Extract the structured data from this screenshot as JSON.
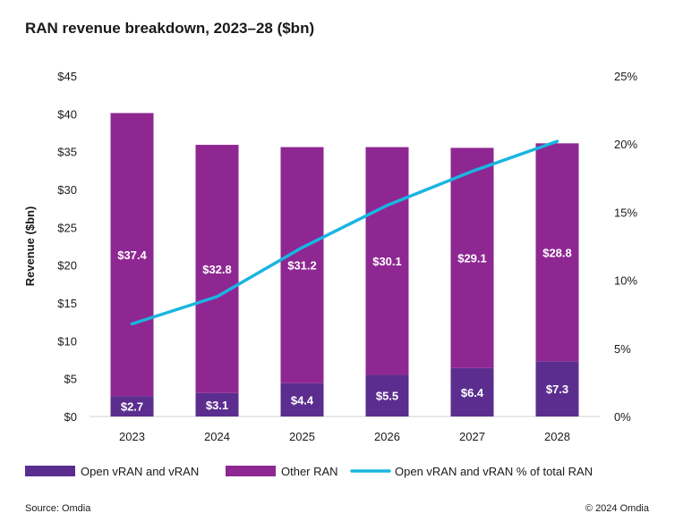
{
  "title": "RAN revenue breakdown, 2023–28 ($bn)",
  "source": "Source: Omdia",
  "copyright": "© 2024 Omdia",
  "colors": {
    "open_vran": "#5b2d8f",
    "other_ran": "#8e2792",
    "share_line": "#19b6e0",
    "baseline": "#d0d0d0"
  },
  "chart_data": {
    "type": "bar",
    "stacked": true,
    "categories": [
      "2023",
      "2024",
      "2025",
      "2026",
      "2027",
      "2028"
    ],
    "series": [
      {
        "name": "Open vRAN and vRAN",
        "values": [
          2.7,
          3.1,
          4.4,
          5.5,
          6.4,
          7.3
        ],
        "labels": [
          "$2.7",
          "$3.1",
          "$4.4",
          "$5.5",
          "$6.4",
          "$7.3"
        ],
        "axis": "left"
      },
      {
        "name": "Other RAN",
        "values": [
          37.4,
          32.8,
          31.2,
          30.1,
          29.1,
          28.8
        ],
        "labels": [
          "$37.4",
          "$32.8",
          "$31.2",
          "$30.1",
          "$29.1",
          "$28.8"
        ],
        "axis": "left"
      },
      {
        "name": "Open vRAN and vRAN % of total RAN",
        "type": "line",
        "values": [
          6.8,
          8.8,
          12.4,
          15.5,
          18.0,
          20.2
        ],
        "axis": "right"
      }
    ],
    "ylabel": "Revenue ($bn)",
    "ylim": [
      0,
      45
    ],
    "yticks": [
      "$0",
      "$5",
      "$10",
      "$15",
      "$20",
      "$25",
      "$30",
      "$35",
      "$40",
      "$45"
    ],
    "y2lim": [
      0,
      25
    ],
    "y2ticks": [
      "0%",
      "5%",
      "10%",
      "15%",
      "20%",
      "25%"
    ],
    "grid": false,
    "legend": "bottom"
  }
}
